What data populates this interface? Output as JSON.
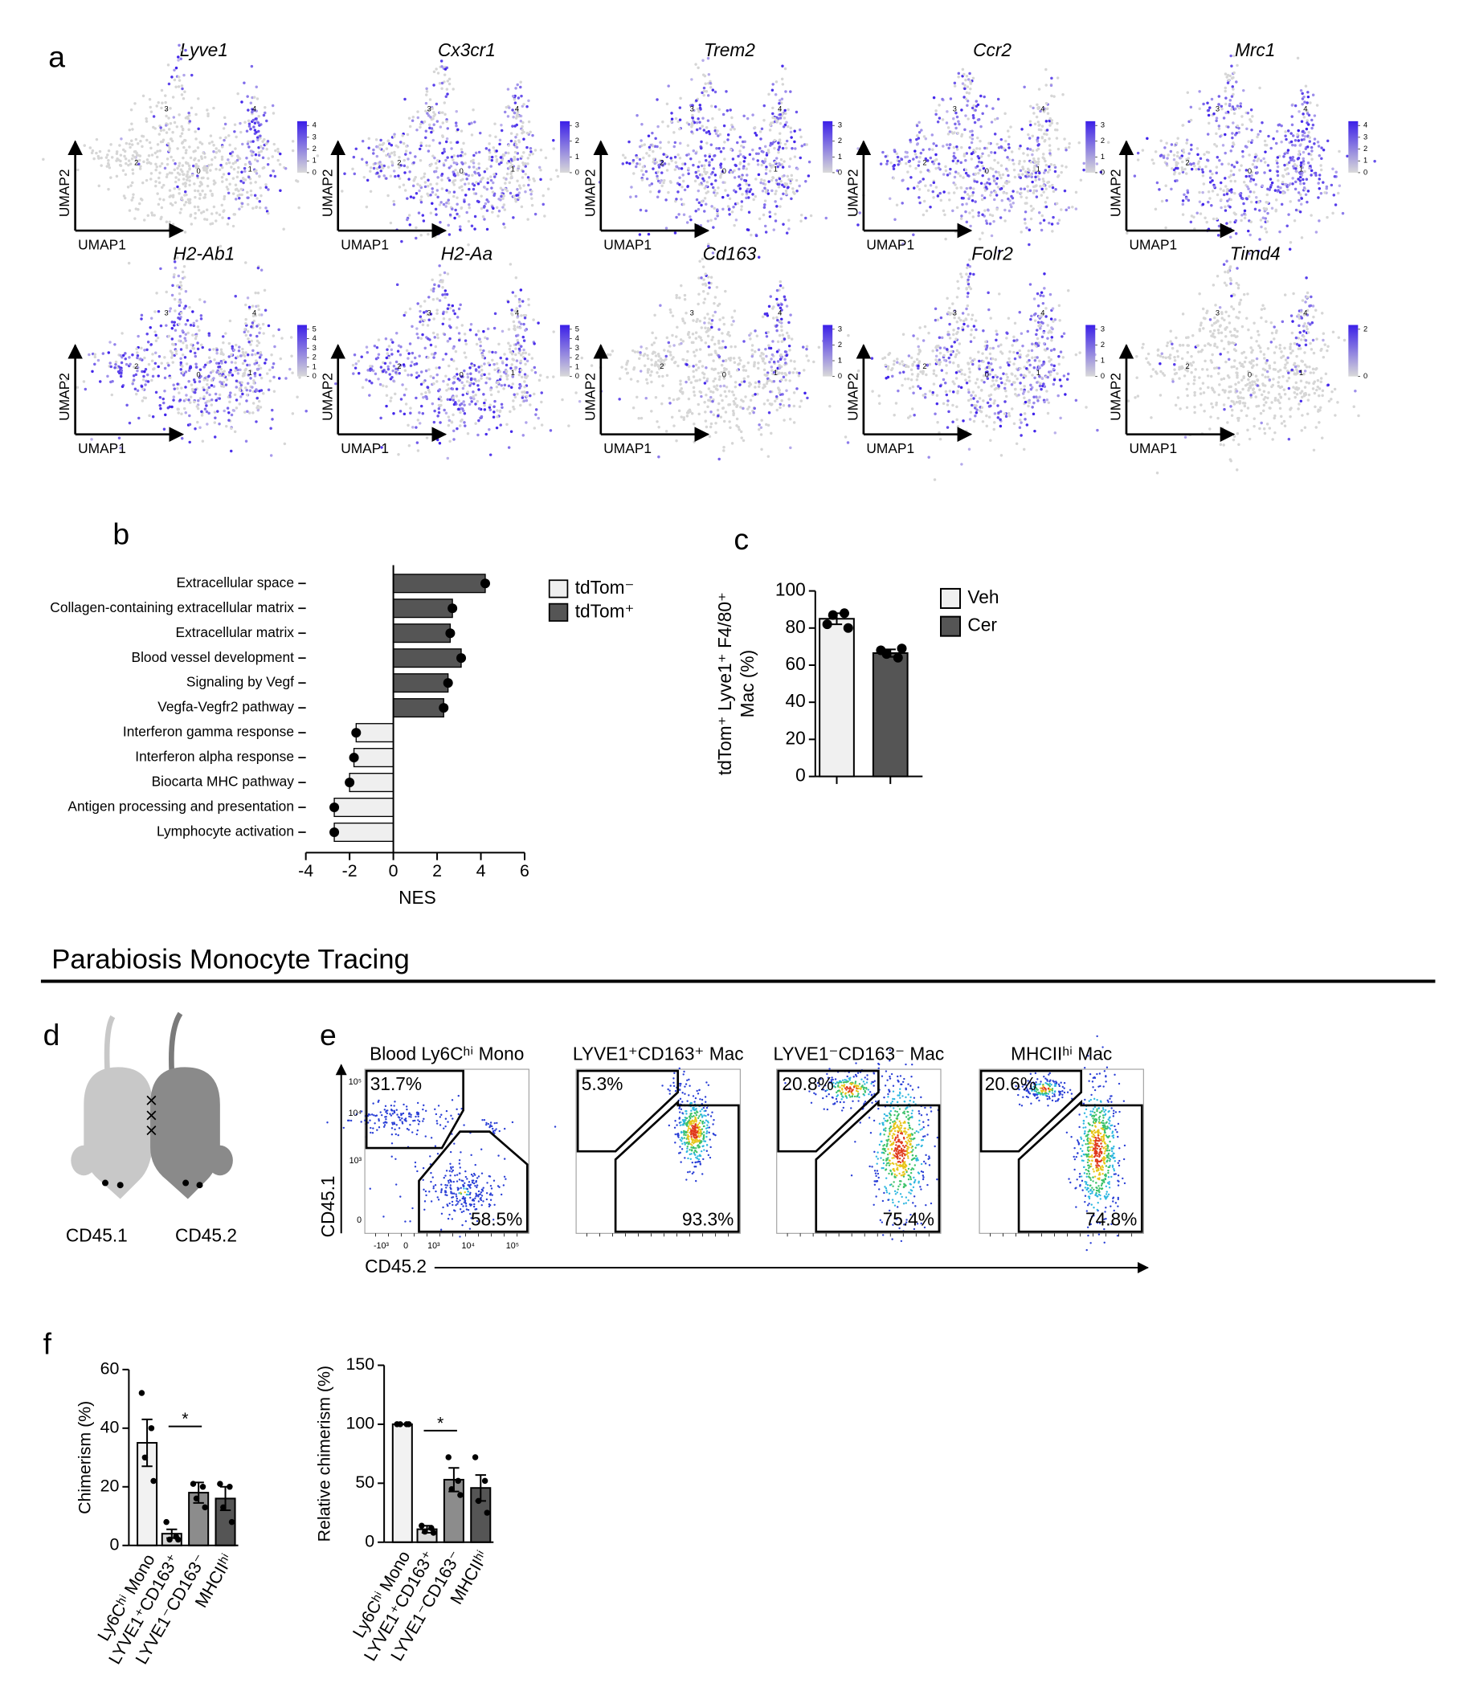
{
  "panel_labels": [
    "a",
    "b",
    "c",
    "d",
    "e",
    "f"
  ],
  "umap": {
    "genes": [
      "Lyve1",
      "Cx3cr1",
      "Trem2",
      "Ccr2",
      "Mrc1",
      "H2-Ab1",
      "H2-Aa",
      "Cd163",
      "Folr2",
      "Timd4"
    ],
    "x_label": "UMAP1",
    "y_label": "UMAP2",
    "cluster_labels": [
      "0",
      "1",
      "2",
      "3",
      "4"
    ],
    "colorbar_ticks": [
      [
        0,
        1,
        2,
        3,
        4
      ],
      [
        0,
        1,
        2,
        3
      ],
      [
        0,
        1,
        2,
        3
      ],
      [
        0,
        1,
        2,
        3
      ],
      [
        0,
        1,
        2,
        3,
        4
      ],
      [
        0,
        1,
        2,
        3,
        4,
        5
      ],
      [
        0,
        1,
        2,
        3,
        4,
        5
      ],
      [
        0,
        1,
        2,
        3
      ],
      [
        0,
        1,
        2,
        3
      ],
      [
        0,
        2
      ]
    ]
  },
  "section_title": "Parabiosis Monocyte Tracing",
  "mice": [
    "CD45.1",
    "CD45.2"
  ],
  "flow": {
    "x_label": "CD45.2",
    "y_label": "CD45.1",
    "yticks": [
      "10⁵",
      "10⁴",
      "10³",
      "0"
    ],
    "xticks": [
      "-10³",
      "0",
      "10³",
      "10⁴",
      "10⁵"
    ],
    "plots": [
      {
        "title": "Blood Ly6Cʰⁱ Mono",
        "gates": [
          "31.7%",
          "58.5%"
        ]
      },
      {
        "title": "LYVE1⁺CD163⁺ Mac",
        "gates": [
          "5.3%",
          "93.3%"
        ]
      },
      {
        "title": "LYVE1⁻CD163⁻ Mac",
        "gates": [
          "20.8%",
          "75.4%"
        ]
      },
      {
        "title": "MHCIIʰⁱ Mac",
        "gates": [
          "20.6%",
          "74.8%"
        ]
      }
    ]
  },
  "chart_data": [
    {
      "type": "bar",
      "orientation": "horizontal",
      "categories": [
        "Extracellular space",
        "Collagen-containing extracellular matrix",
        "Extracellular matrix",
        "Blood vessel development",
        "Signaling by Vegf",
        "Vegfa-Vegfr2 pathway",
        "Interferon gamma response",
        "Interferon alpha response",
        "Biocarta MHC pathway",
        "Antigen processing and presentation",
        "Lymphocyte activation"
      ],
      "series": [
        {
          "name": "tdTom⁻",
          "color": "#efefef",
          "values": [
            null,
            null,
            null,
            null,
            null,
            null,
            -1.7,
            -1.8,
            -2.0,
            -2.7,
            -2.7
          ]
        },
        {
          "name": "tdTom⁺",
          "color": "#555555",
          "values": [
            4.2,
            2.7,
            2.6,
            3.1,
            2.5,
            2.3,
            null,
            null,
            null,
            null,
            null
          ]
        }
      ],
      "xlim": [
        -4,
        6
      ],
      "xticks": [
        -4,
        -2,
        0,
        2,
        4,
        6
      ],
      "xlabel": "NES"
    },
    {
      "type": "bar",
      "ylabel": [
        "tdTom⁺ Lyve1⁺ F4/80⁺",
        "Mac (%)"
      ],
      "series": [
        {
          "name": "Veh",
          "color": "#f0f0f0",
          "values": [
            85
          ],
          "errors": [
            3
          ],
          "points": [
            [
              82,
              88,
              87,
              80
            ]
          ]
        },
        {
          "name": "Cer",
          "color": "#555555",
          "values": [
            66.5
          ],
          "errors": [
            2
          ],
          "points": [
            [
              68,
              64,
              66,
              69
            ]
          ]
        }
      ],
      "ylim": [
        0,
        100
      ],
      "yticks": [
        0,
        20,
        40,
        60,
        80,
        100
      ]
    },
    {
      "type": "bar",
      "ylabel": "Chimerism (%)",
      "categories": [
        "Ly6Cʰⁱ Mono",
        "LYVE1⁺CD163⁺",
        "LYVE1⁻CD163⁻",
        "MHCIIʰⁱ"
      ],
      "values": [
        35,
        4,
        18,
        16
      ],
      "errors": [
        8,
        1.5,
        3.5,
        4
      ],
      "points": [
        [
          52,
          40,
          30,
          22
        ],
        [
          8,
          3,
          2,
          2
        ],
        [
          21,
          20,
          16,
          13
        ],
        [
          21,
          20,
          13,
          8
        ]
      ],
      "colors": [
        "#f2f2f2",
        "#d9d9d9",
        "#8c8c8c",
        "#555555"
      ],
      "ylim": [
        0,
        60
      ],
      "yticks": [
        0,
        20,
        40,
        60
      ],
      "annotation": "*"
    },
    {
      "type": "bar",
      "ylabel": "Relative chimerism (%)",
      "categories": [
        "Ly6Cʰⁱ Mono",
        "LYVE1⁺CD163⁺",
        "LYVE1⁻CD163⁻",
        "MHCIIʰⁱ"
      ],
      "values": [
        100,
        11,
        53,
        46
      ],
      "errors": [
        0,
        3,
        10,
        11
      ],
      "points": [
        [
          100,
          100,
          100,
          100
        ],
        [
          14,
          12,
          9,
          8
        ],
        [
          72,
          52,
          45,
          40
        ],
        [
          72,
          52,
          35,
          25
        ]
      ],
      "colors": [
        "#f2f2f2",
        "#d9d9d9",
        "#8c8c8c",
        "#555555"
      ],
      "ylim": [
        0,
        150
      ],
      "yticks": [
        0,
        50,
        100,
        150
      ],
      "annotation": "*"
    }
  ]
}
